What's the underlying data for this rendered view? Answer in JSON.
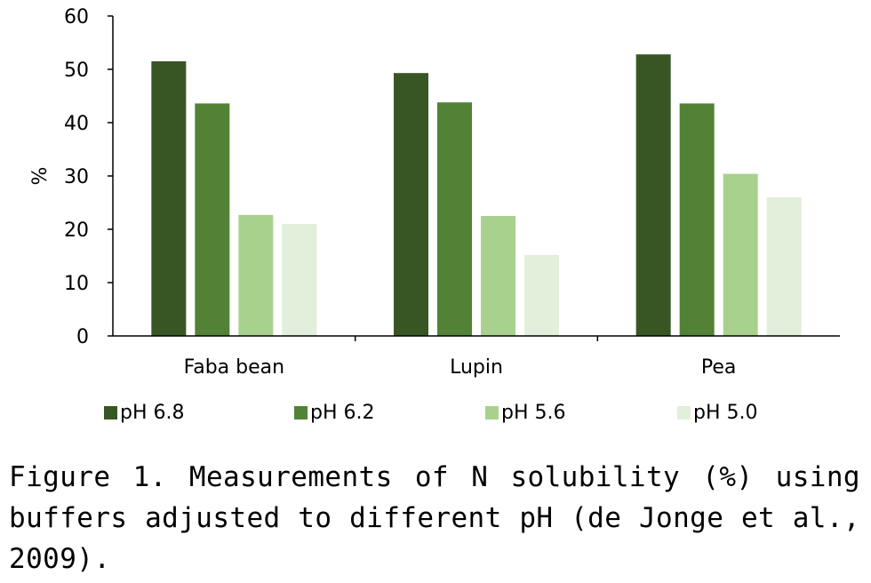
{
  "chart_data": {
    "type": "bar",
    "categories": [
      "Faba bean",
      "Lupin",
      "Pea"
    ],
    "series": [
      {
        "name": "pH 6.8",
        "color": "#375623",
        "values": [
          51.5,
          49.3,
          52.8
        ]
      },
      {
        "name": "pH 6.2",
        "color": "#538135",
        "values": [
          43.6,
          43.8,
          43.6
        ]
      },
      {
        "name": "pH 5.6",
        "color": "#a9d18e",
        "values": [
          22.7,
          22.5,
          30.4
        ]
      },
      {
        "name": "pH 5.0",
        "color": "#e2efda",
        "values": [
          21.0,
          15.2,
          26.0
        ]
      }
    ],
    "ylabel": "%",
    "xlabel": "",
    "ylim": [
      0,
      60
    ],
    "yticks": [
      0,
      10,
      20,
      30,
      40,
      50,
      60
    ],
    "grid": false,
    "legend_position": "bottom"
  },
  "caption": "Figure 1. Measurements of N solubility (%) using buffers adjusted to different pH (de Jonge et al., 2009)."
}
